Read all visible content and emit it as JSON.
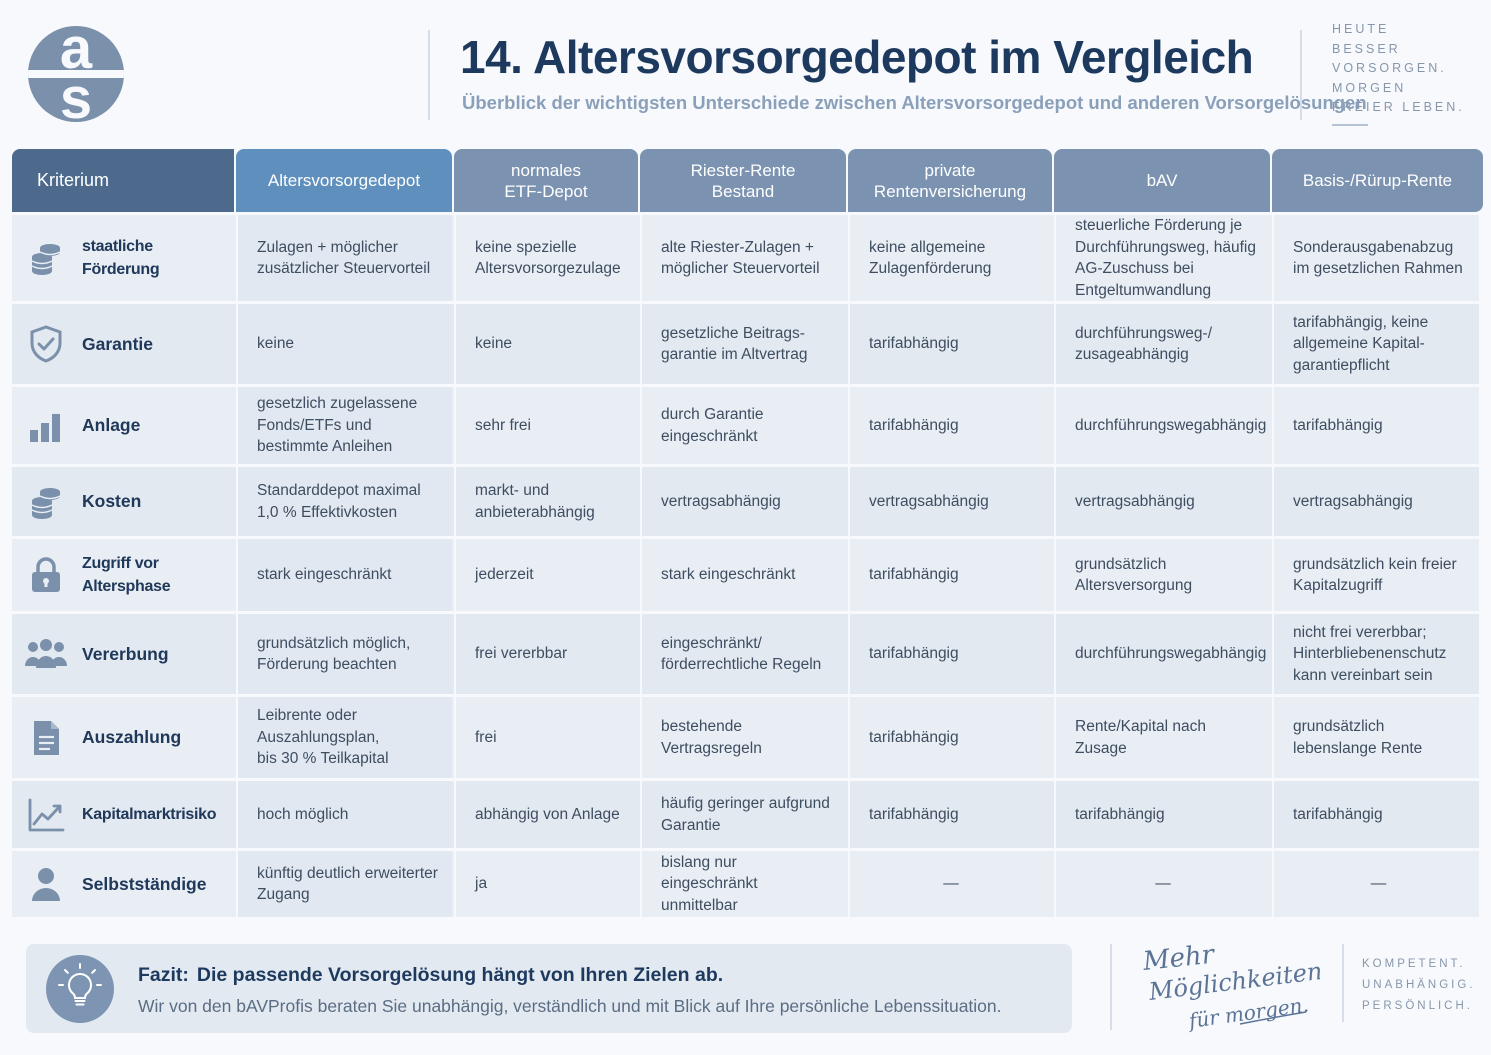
{
  "logo": {
    "letters": "as",
    "icon": "as-logo"
  },
  "header": {
    "title": "14. Altersvorsorgedepot im Vergleich",
    "subtitle": "Überblick der wichtigsten Unterschiede zwischen Altersvorsorgedepot und anderen Vorsorgelösungen",
    "slogan": [
      "HEUTE",
      "BESSER",
      "VORSORGEN.",
      "MORGEN",
      "FREIER LEBEN."
    ]
  },
  "table": {
    "columns": [
      "Kriterium",
      "Altersvorsorgedepot",
      "normales\nETF-Depot",
      "Riester-Rente\nBestand",
      "private\nRentenversicherung",
      "bAV",
      "Basis-/Rürup-Rente"
    ],
    "rows": [
      {
        "criterion": "staatliche Förderung",
        "icon": "coins-icon",
        "cells": [
          "Zulagen + möglicher zusätzlicher Steuervorteil",
          "keine spezielle Altersvorsorgezulage",
          "alte Riester-Zulagen + möglicher Steuervorteil",
          "keine allgemeine Zulagenförderung",
          "steuerliche Förderung je Durchführungsweg, häufig AG-Zuschuss bei Entgeltumwandlung",
          "Sonderausgabenabzug im gesetzlichen Rahmen"
        ]
      },
      {
        "criterion": "Garantie",
        "icon": "shield-check-icon",
        "cells": [
          "keine",
          "keine",
          "gesetzliche Beitrags-\ngarantie im Altvertrag",
          "tarifabhängig",
          "durchführungsweg-/\nzusageabhängig",
          "tarifabhängig, keine allgemeine Kapital-\ngarantiepflicht"
        ]
      },
      {
        "criterion": "Anlage",
        "icon": "bar-chart-icon",
        "cells": [
          "gesetzlich zugelassene Fonds/ETFs und bestimmte Anleihen",
          "sehr frei",
          "durch Garantie eingeschränkt",
          "tarifabhängig",
          "durchführungswegabhängig",
          "tarifabhängig"
        ]
      },
      {
        "criterion": "Kosten",
        "icon": "coins-icon",
        "cells": [
          "Standarddepot maximal 1,0 % Effektivkosten",
          "markt- und anbieterabhängig",
          "vertragsabhängig",
          "vertragsabhängig",
          "vertragsabhängig",
          "vertragsabhängig"
        ]
      },
      {
        "criterion": "Zugriff vor\nAltersphase",
        "icon": "lock-icon",
        "cells": [
          "stark eingeschränkt",
          "jederzeit",
          "stark eingeschränkt",
          "tarifabhängig",
          "grundsätzlich Altersversorgung",
          "grundsätzlich kein freier Kapitalzugriff"
        ]
      },
      {
        "criterion": "Vererbung",
        "icon": "people-icon",
        "cells": [
          "grundsätzlich möglich, Förderung beachten",
          "frei vererbbar",
          "eingeschränkt/\nförderrechtliche Regeln",
          "tarifabhängig",
          "durchführungswegabhängig",
          "nicht frei vererbbar; Hinterbliebenenschutz kann vereinbart sein"
        ]
      },
      {
        "criterion": "Auszahlung",
        "icon": "document-icon",
        "cells": [
          "Leibrente oder Auszahlungsplan,\nbis 30 % Teilkapital",
          "frei",
          "bestehende Vertragsregeln",
          "tarifabhängig",
          "Rente/Kapital nach Zusage",
          "grundsätzlich lebenslange Rente"
        ]
      },
      {
        "criterion": "Kapitalmarktrisiko",
        "icon": "line-chart-icon",
        "cells": [
          "hoch möglich",
          "abhängig von Anlage",
          "häufig geringer aufgrund Garantie",
          "tarifabhängig",
          "tarifabhängig",
          "tarifabhängig"
        ]
      },
      {
        "criterion": "Selbstständige",
        "icon": "person-icon",
        "cells": [
          "künftig deutlich erweiterter Zugang",
          "ja",
          "bislang nur eingeschränkt unmittelbar",
          "—",
          "—",
          "—"
        ]
      }
    ]
  },
  "footer": {
    "fazit_label": "Fazit:",
    "fazit_title": "Die passende Vorsorgelösung hängt von Ihren Zielen ab.",
    "fazit_text": "Wir von den bAVProfis beraten Sie unabhängig, verständlich und mit Blick auf Ihre persönliche Lebenssituation.",
    "script_lines": [
      "Mehr",
      "Möglichkeiten",
      "für morgen."
    ],
    "claims": [
      "KOMPETENT.",
      "UNABHÄNGIG.",
      "PERSÖNLICH."
    ]
  },
  "colors": {
    "title": "#1d3a5e",
    "header_first": "#4d6a8c",
    "header_active": "#5f8fbd",
    "header_default": "#7b93b1",
    "icon": "#7a90ab"
  }
}
